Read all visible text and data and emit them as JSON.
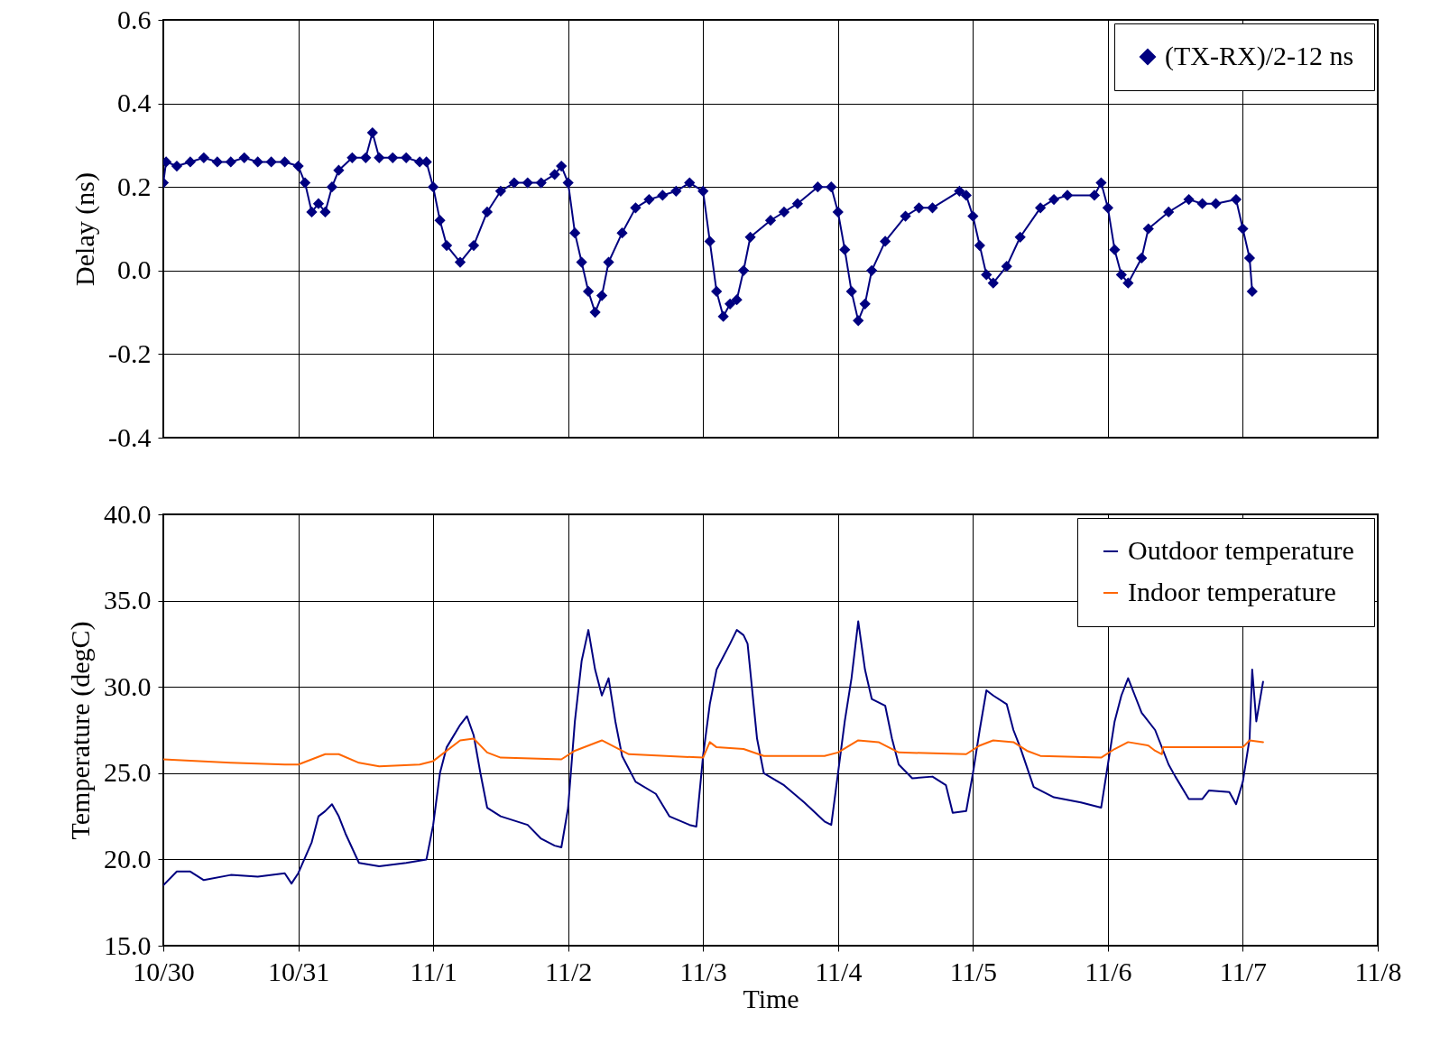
{
  "chart_data": [
    {
      "type": "line",
      "ylabel": "Delay (ns)",
      "xlim": [
        "--10-30",
        "--11-08"
      ],
      "ylim": [
        -0.4,
        0.6
      ],
      "yticks": [
        {
          "value": -0.4,
          "label": "-0.4"
        },
        {
          "value": -0.2,
          "label": "-0.2"
        },
        {
          "value": 0,
          "label": "0.0"
        },
        {
          "value": 0.2,
          "label": "0.2"
        },
        {
          "value": 0.4,
          "label": "0.4"
        },
        {
          "value": 0.6,
          "label": "0.6"
        }
      ],
      "tick_labels": "y",
      "grid": true,
      "legend": "top right",
      "marker": "diamond",
      "xticks": [
        "--10-30",
        "--10-31",
        "--11-01",
        "--11-02",
        "--11-03",
        "--11-04",
        "--11-05",
        "--11-06",
        "--11-07",
        "--11-08"
      ],
      "series": [
        {
          "name": "(TX-RX)/2-12 ns",
          "color": "#000080",
          "x": [
            "--10-30T00:00",
            "--10-30T00:30",
            "--10-30T02:24",
            "--10-30T04:48",
            "--10-30T07:12",
            "--10-30T09:36",
            "--10-30T12:00",
            "--10-30T14:24",
            "--10-30T16:48",
            "--10-30T19:12",
            "--10-30T21:36",
            "--10-31T00:00",
            "--10-31T01:12",
            "--10-31T02:24",
            "--10-31T03:36",
            "--10-31T04:48",
            "--10-31T06:00",
            "--10-31T07:12",
            "--10-31T09:36",
            "--10-31T12:00",
            "--10-31T13:12",
            "--10-31T14:24",
            "--10-31T16:48",
            "--10-31T19:12",
            "--10-31T21:36",
            "--10-31T22:48",
            "--11-01T00:00",
            "--11-01T01:12",
            "--11-01T02:24",
            "--11-01T04:48",
            "--11-01T07:12",
            "--11-01T09:36",
            "--11-01T12:00",
            "--11-01T14:24",
            "--11-01T16:48",
            "--11-01T19:12",
            "--11-01T21:36",
            "--11-01T22:48",
            "--11-02T00:00",
            "--11-02T01:12",
            "--11-02T02:24",
            "--11-02T03:36",
            "--11-02T04:48",
            "--11-02T06:00",
            "--11-02T07:12",
            "--11-02T09:36",
            "--11-02T12:00",
            "--11-02T14:24",
            "--11-02T16:48",
            "--11-02T19:12",
            "--11-02T21:36",
            "--11-03T00:00",
            "--11-03T01:12",
            "--11-03T02:24",
            "--11-03T03:36",
            "--11-03T04:48",
            "--11-03T06:00",
            "--11-03T07:12",
            "--11-03T08:24",
            "--11-03T12:00",
            "--11-03T14:24",
            "--11-03T16:48",
            "--11-03T20:24",
            "--11-03T22:48",
            "--11-04T00:00",
            "--11-04T01:12",
            "--11-04T02:24",
            "--11-04T03:36",
            "--11-04T04:48",
            "--11-04T06:00",
            "--11-04T08:24",
            "--11-04T12:00",
            "--11-04T14:24",
            "--11-04T16:48",
            "--11-04T21:36",
            "--11-04T22:48",
            "--11-05T00:00",
            "--11-05T01:12",
            "--11-05T02:24",
            "--11-05T03:36",
            "--11-05T06:00",
            "--11-05T08:24",
            "--11-05T12:00",
            "--11-05T14:24",
            "--11-05T16:48",
            "--11-05T21:36",
            "--11-05T22:48",
            "--11-06T00:00",
            "--11-06T01:12",
            "--11-06T02:24",
            "--11-06T03:36",
            "--11-06T06:00",
            "--11-06T07:12",
            "--11-06T10:48",
            "--11-06T14:24",
            "--11-06T16:48",
            "--11-06T19:12",
            "--11-06T22:48",
            "--11-07T00:00",
            "--11-07T01:12",
            "--11-07T01:40"
          ],
          "values": [
            0.21,
            0.26,
            0.25,
            0.26,
            0.27,
            0.26,
            0.26,
            0.27,
            0.26,
            0.26,
            0.26,
            0.25,
            0.21,
            0.14,
            0.16,
            0.14,
            0.2,
            0.24,
            0.27,
            0.27,
            0.33,
            0.27,
            0.27,
            0.27,
            0.26,
            0.26,
            0.2,
            0.12,
            0.06,
            0.02,
            0.06,
            0.14,
            0.19,
            0.21,
            0.21,
            0.21,
            0.23,
            0.25,
            0.21,
            0.09,
            0.02,
            -0.05,
            -0.1,
            -0.06,
            0.02,
            0.09,
            0.15,
            0.17,
            0.18,
            0.19,
            0.21,
            0.19,
            0.07,
            -0.05,
            -0.11,
            -0.08,
            -0.07,
            0.0,
            0.08,
            0.12,
            0.14,
            0.16,
            0.2,
            0.2,
            0.14,
            0.05,
            -0.05,
            -0.12,
            -0.08,
            0.0,
            0.07,
            0.13,
            0.15,
            0.15,
            0.19,
            0.18,
            0.13,
            0.06,
            -0.01,
            -0.03,
            0.01,
            0.08,
            0.15,
            0.17,
            0.18,
            0.18,
            0.21,
            0.15,
            0.05,
            -0.01,
            -0.03,
            0.03,
            0.1,
            0.14,
            0.17,
            0.16,
            0.16,
            0.17,
            0.1,
            0.03,
            -0.05
          ]
        }
      ]
    },
    {
      "type": "line",
      "xlabel": "Time",
      "ylabel": "Temperature (degC)",
      "xlim": [
        "--10-30",
        "--11-08"
      ],
      "xticks": [
        {
          "value": "--10-30",
          "label": "10/30"
        },
        {
          "value": "--10-31",
          "label": "10/31"
        },
        {
          "value": "--11-01",
          "label": "11/1"
        },
        {
          "value": "--11-02",
          "label": "11/2"
        },
        {
          "value": "--11-03",
          "label": "11/3"
        },
        {
          "value": "--11-04",
          "label": "11/4"
        },
        {
          "value": "--11-05",
          "label": "11/5"
        },
        {
          "value": "--11-06",
          "label": "11/6"
        },
        {
          "value": "--11-07",
          "label": "11/7"
        },
        {
          "value": "--11-08",
          "label": "11/8"
        }
      ],
      "ylim": [
        15,
        40
      ],
      "yticks": [
        {
          "value": 15,
          "label": "15.0"
        },
        {
          "value": 20,
          "label": "20.0"
        },
        {
          "value": 25,
          "label": "25.0"
        },
        {
          "value": 30,
          "label": "30.0"
        },
        {
          "value": 35,
          "label": "35.0"
        },
        {
          "value": 40,
          "label": "40.0"
        }
      ],
      "grid": true,
      "legend": "top right",
      "series": [
        {
          "name": "Outdoor temperature",
          "color": "#000080",
          "x": [
            "--10-30T00:00",
            "--10-30T02:24",
            "--10-30T04:48",
            "--10-30T07:12",
            "--10-30T12:00",
            "--10-30T16:48",
            "--10-30T21:36",
            "--10-30T22:48",
            "--10-31T00:00",
            "--10-31T02:24",
            "--10-31T03:36",
            "--10-31T04:48",
            "--10-31T06:00",
            "--10-31T07:12",
            "--10-31T08:24",
            "--10-31T10:48",
            "--10-31T14:24",
            "--10-31T19:12",
            "--10-31T22:48",
            "--11-01T00:00",
            "--11-01T01:12",
            "--11-01T02:24",
            "--11-01T04:48",
            "--11-01T06:00",
            "--11-01T07:12",
            "--11-01T08:24",
            "--11-01T09:36",
            "--11-01T12:00",
            "--11-01T16:48",
            "--11-01T19:12",
            "--11-01T21:36",
            "--11-01T22:48",
            "--11-02T00:00",
            "--11-02T01:12",
            "--11-02T02:24",
            "--11-02T03:36",
            "--11-02T04:48",
            "--11-02T06:00",
            "--11-02T07:12",
            "--11-02T08:24",
            "--11-02T09:36",
            "--11-02T12:00",
            "--11-02T15:36",
            "--11-02T18:00",
            "--11-02T21:36",
            "--11-02T22:48",
            "--11-03T00:00",
            "--11-03T01:12",
            "--11-03T02:24",
            "--11-03T04:48",
            "--11-03T06:00",
            "--11-03T07:12",
            "--11-03T07:55",
            "--11-03T09:36",
            "--11-03T10:48",
            "--11-03T14:24",
            "--11-03T18:00",
            "--11-03T21:36",
            "--11-03T22:48",
            "--11-04T00:00",
            "--11-04T01:12",
            "--11-04T02:24",
            "--11-04T03:36",
            "--11-04T04:48",
            "--11-04T06:00",
            "--11-04T08:24",
            "--11-04T09:36",
            "--11-04T10:48",
            "--11-04T13:12",
            "--11-04T16:48",
            "--11-04T19:12",
            "--11-04T20:24",
            "--11-04T22:48",
            "--11-05T00:00",
            "--11-05T01:12",
            "--11-05T02:24",
            "--11-05T03:36",
            "--11-05T06:00",
            "--11-05T07:12",
            "--11-05T08:24",
            "--11-05T10:48",
            "--11-05T14:24",
            "--11-05T19:12",
            "--11-05T22:48",
            "--11-06T00:00",
            "--11-06T01:12",
            "--11-06T02:24",
            "--11-06T03:36",
            "--11-06T04:48",
            "--11-06T06:00",
            "--11-06T08:24",
            "--11-06T10:48",
            "--11-06T12:00",
            "--11-06T14:24",
            "--11-06T16:48",
            "--11-06T18:00",
            "--11-06T21:36",
            "--11-06T22:48",
            "--11-07T00:00",
            "--11-07T01:12",
            "--11-07T01:40",
            "--11-07T02:24",
            "--11-07T03:36"
          ],
          "values": [
            18.5,
            19.3,
            19.3,
            18.8,
            19.1,
            19.0,
            19.2,
            18.6,
            19.2,
            21,
            22.5,
            22.8,
            23.2,
            22.5,
            21.5,
            19.8,
            19.6,
            19.8,
            20.0,
            22,
            25,
            26.5,
            27.8,
            28.3,
            27.2,
            25,
            23,
            22.5,
            22,
            21.2,
            20.8,
            20.7,
            23,
            28,
            31.5,
            33.3,
            31,
            29.5,
            30.5,
            28,
            26,
            24.5,
            23.8,
            22.5,
            22.0,
            21.9,
            26,
            29,
            31,
            32.5,
            33.3,
            33.0,
            32.5,
            27,
            25,
            24.3,
            23.3,
            22.2,
            22,
            25,
            28,
            30.5,
            33.8,
            31,
            29.3,
            28.9,
            27,
            25.5,
            24.7,
            24.8,
            24.3,
            22.7,
            22.8,
            25,
            27.5,
            29.8,
            29.5,
            29.0,
            27.5,
            26.5,
            24.2,
            23.6,
            23.3,
            23.0,
            25.5,
            28,
            29.5,
            30.5,
            29.5,
            28.5,
            27.5,
            25.5,
            24.8,
            23.5,
            23.5,
            24.0,
            23.9,
            23.2,
            24.5,
            27,
            31,
            28,
            30.3
          ]
        },
        {
          "name": "Indoor temperature",
          "color": "#ff6600",
          "x": [
            "--10-30T00:00",
            "--10-30T12:00",
            "--10-30T21:36",
            "--10-31T00:00",
            "--10-31T04:48",
            "--10-31T07:12",
            "--10-31T10:48",
            "--10-31T14:24",
            "--10-31T21:36",
            "--11-01T00:00",
            "--11-01T04:48",
            "--11-01T07:12",
            "--11-01T09:36",
            "--11-01T12:00",
            "--11-01T22:48",
            "--11-02T01:12",
            "--11-02T06:00",
            "--11-02T08:24",
            "--11-02T10:48",
            "--11-03T00:00",
            "--11-03T01:12",
            "--11-03T02:24",
            "--11-03T07:12",
            "--11-03T10:48",
            "--11-03T21:36",
            "--11-04T00:00",
            "--11-04T03:36",
            "--11-04T07:12",
            "--11-04T10:48",
            "--11-04T22:48",
            "--11-05T01:12",
            "--11-05T03:36",
            "--11-05T07:12",
            "--11-05T09:36",
            "--11-05T12:00",
            "--11-05T22:48",
            "--11-06T01:12",
            "--11-06T03:36",
            "--11-06T07:12",
            "--11-06T08:24",
            "--11-06T09:36",
            "--11-06T09:50",
            "--11-07T00:00",
            "--11-07T01:12",
            "--11-07T03:36"
          ],
          "values": [
            25.8,
            25.6,
            25.5,
            25.5,
            26.1,
            26.1,
            25.6,
            25.4,
            25.5,
            25.7,
            26.9,
            27.0,
            26.2,
            25.9,
            25.8,
            26.3,
            26.9,
            26.5,
            26.1,
            25.9,
            26.8,
            26.5,
            26.4,
            26.0,
            26.0,
            26.2,
            26.9,
            26.8,
            26.2,
            26.1,
            26.6,
            26.9,
            26.8,
            26.3,
            26.0,
            25.9,
            26.4,
            26.8,
            26.6,
            26.3,
            26.1,
            26.5,
            26.5,
            26.9,
            26.8
          ]
        }
      ]
    }
  ]
}
